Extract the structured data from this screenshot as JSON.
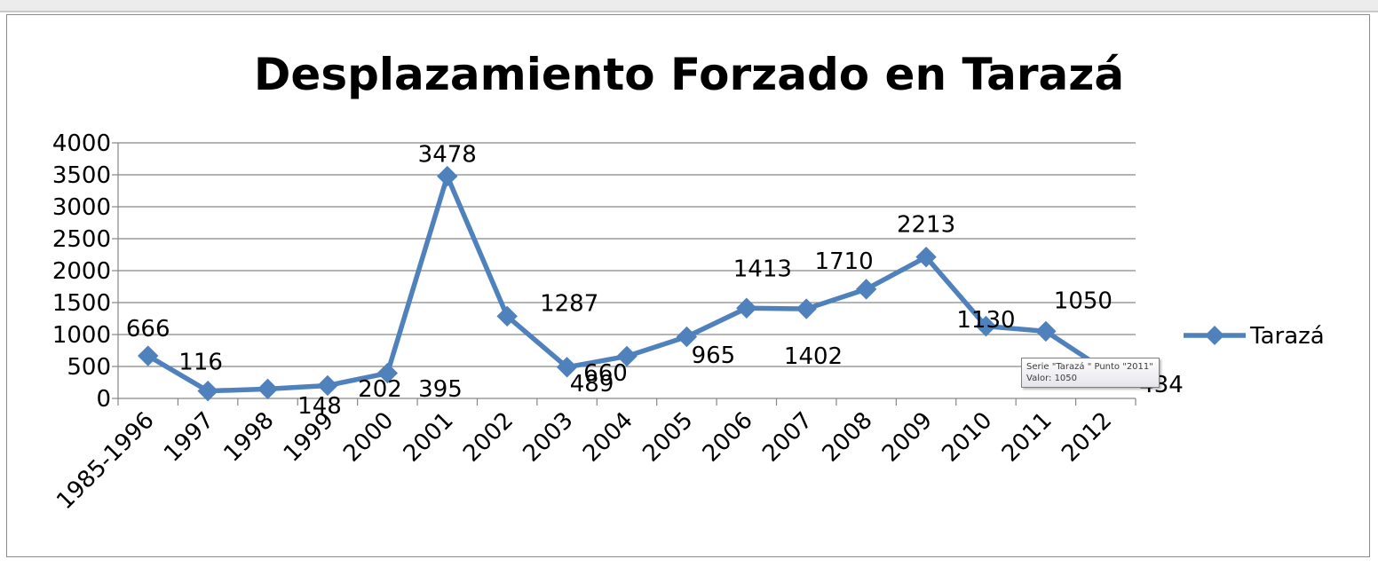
{
  "chart_data": {
    "type": "line",
    "title": "Desplazamiento Forzado en Tarazá",
    "categories": [
      "1985-1996",
      "1997",
      "1998",
      "1999",
      "2000",
      "2001",
      "2002",
      "2003",
      "2004",
      "2005",
      "2006",
      "2007",
      "2008",
      "2009",
      "2010",
      "2011",
      "2012"
    ],
    "series": [
      {
        "name": "Tarazá",
        "values": [
          666,
          116,
          148,
          202,
          395,
          3478,
          1287,
          489,
          660,
          965,
          1413,
          1402,
          1710,
          2213,
          1130,
          1050,
          434
        ],
        "labels": [
          "666",
          "116",
          "148",
          "202",
          "395",
          "3478",
          "1287",
          "489",
          "660",
          "965",
          "1413",
          "1402",
          "1710",
          "2213",
          "1130",
          "1050",
          "434"
        ]
      }
    ],
    "ylim": [
      0,
      4000
    ],
    "yticks": [
      0,
      500,
      1000,
      1500,
      2000,
      2500,
      3000,
      3500,
      4000
    ],
    "grid": true,
    "legend_position": "right",
    "line_color": "#4f81bd"
  },
  "tooltip": {
    "line1": "Serie \"Tarazá \" Punto \"2011\"",
    "line2": "Valor: 1050"
  }
}
